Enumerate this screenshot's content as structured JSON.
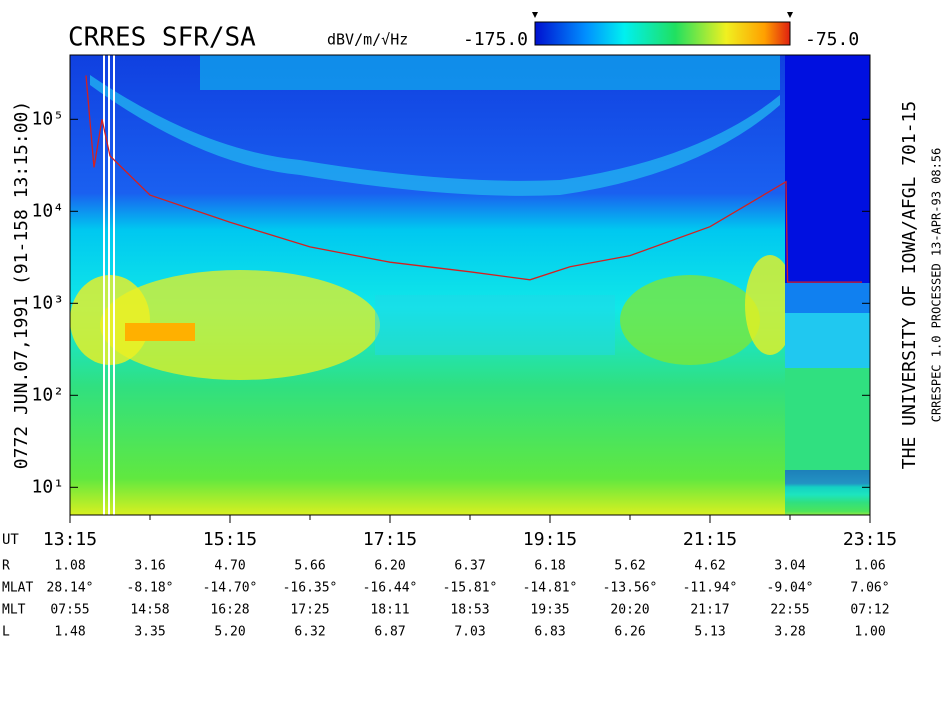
{
  "chart_data": {
    "type": "spectrogram",
    "title": "CRRES SFR/SA",
    "colorbar_label": "dBV/m/√Hz",
    "zlim": [
      -175,
      -75
    ],
    "zticks": [
      {
        "value": -175,
        "label": "-175.0"
      },
      {
        "value": -75,
        "label": "-75.0"
      }
    ],
    "left_label": "0772  JUN.07,1991  (91-158 13:15:00)",
    "right_label_1": "THE UNIVERSITY OF IOWA/AFGL 701-15",
    "right_label_2": "CRRESPEC 1.0  PROCESSED 13-APR-93  08:56",
    "x_axis_label": "UT",
    "xlim": [
      13.25,
      23.25
    ],
    "xticks": [
      {
        "value": 13.25,
        "label": "13:15"
      },
      {
        "value": 15.25,
        "label": "15:15"
      },
      {
        "value": 17.25,
        "label": "17:15"
      },
      {
        "value": 19.25,
        "label": "19:15"
      },
      {
        "value": 21.25,
        "label": "21:15"
      },
      {
        "value": 23.25,
        "label": "23:15"
      }
    ],
    "xminorticks": [
      14.25,
      16.25,
      18.25,
      20.25,
      22.25
    ],
    "ylog": true,
    "ylim": [
      5,
      500000
    ],
    "yticks": [
      {
        "value": 10,
        "label": "10¹"
      },
      {
        "value": 100,
        "label": "10²"
      },
      {
        "value": 1000,
        "label": "10³"
      },
      {
        "value": 10000,
        "label": "10⁴"
      },
      {
        "value": 100000,
        "label": "10⁵"
      }
    ],
    "series": [
      {
        "name": "fce",
        "color": "#d42020",
        "x": [
          13.45,
          13.55,
          13.65,
          13.75,
          14.25,
          15.25,
          16.25,
          17.25,
          18.25,
          19.0,
          19.5,
          20.25,
          21.25,
          22.2,
          22.22,
          23.15
        ],
        "values": [
          300000,
          30000,
          100000,
          40000,
          15000,
          7600,
          4100,
          2800,
          2200,
          1800,
          2500,
          3300,
          6800,
          21000,
          1700,
          1700
        ]
      }
    ],
    "ephemeris": [
      {
        "label": "R",
        "values": [
          "1.08",
          "3.16",
          "4.70",
          "5.66",
          "6.20",
          "6.37",
          "6.18",
          "5.62",
          "4.62",
          "3.04",
          "1.06"
        ]
      },
      {
        "label": "MLAT",
        "values": [
          "28.14°",
          "-8.18°",
          "-14.70°",
          "-16.35°",
          "-16.44°",
          "-15.81°",
          "-14.81°",
          "-13.56°",
          "-11.94°",
          "-9.04°",
          "7.06°"
        ]
      },
      {
        "label": "MLT",
        "values": [
          "07:55",
          "14:58",
          "16:28",
          "17:25",
          "18:11",
          "18:53",
          "19:35",
          "20:20",
          "21:17",
          "22:55",
          "07:12"
        ]
      },
      {
        "label": "L",
        "values": [
          "1.48",
          "3.35",
          "5.20",
          "6.32",
          "6.87",
          "7.03",
          "6.83",
          "6.26",
          "5.13",
          "3.28",
          "1.00"
        ]
      }
    ]
  }
}
